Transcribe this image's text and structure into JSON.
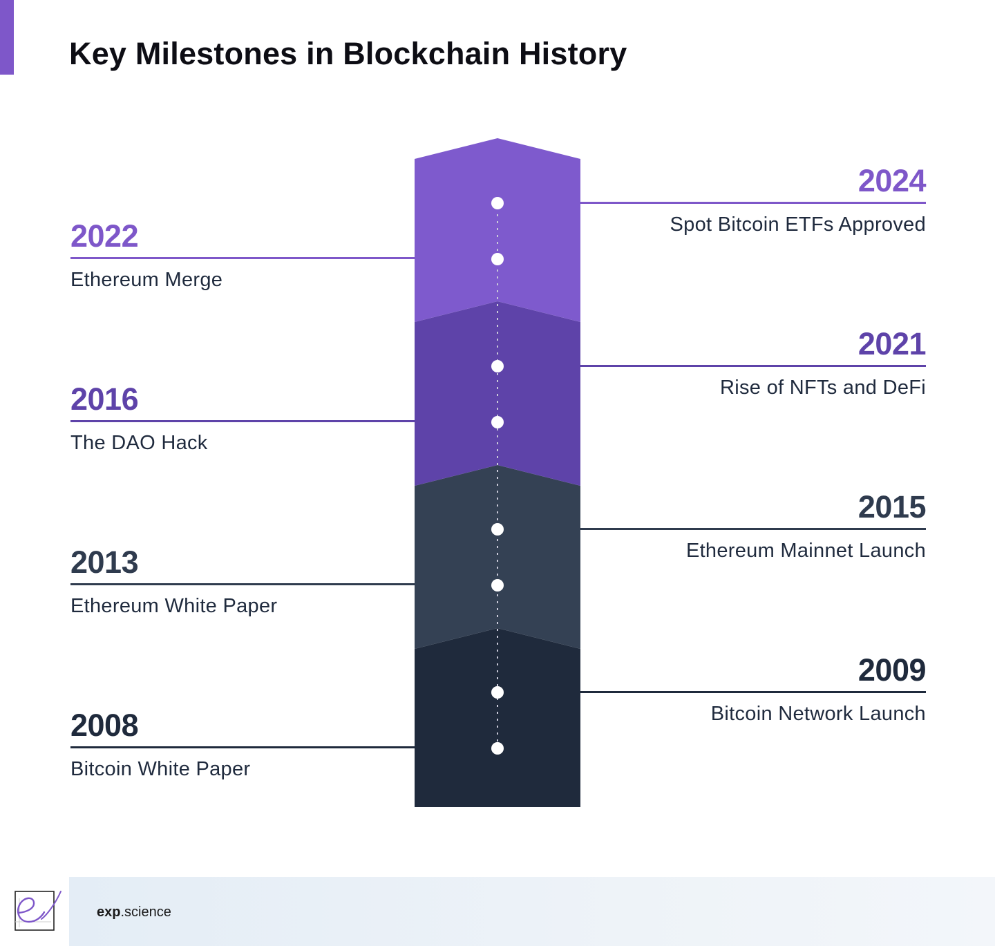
{
  "title": "Key Milestones in Blockchain History",
  "colors": {
    "accent": "#7e57c9",
    "purple_light": "#7e5acd",
    "purple_dark": "#5e43a9",
    "slate": "#344154",
    "navy": "#1f2a3c"
  },
  "milestones": [
    {
      "year": "2024",
      "event": "Spot Bitcoin ETFs Approved"
    },
    {
      "year": "2022",
      "event": "Ethereum Merge"
    },
    {
      "year": "2021",
      "event": "Rise of NFTs and DeFi"
    },
    {
      "year": "2016",
      "event": "The DAO Hack"
    },
    {
      "year": "2015",
      "event": "Ethereum Mainnet Launch"
    },
    {
      "year": "2013",
      "event": "Ethereum White Paper"
    },
    {
      "year": "2009",
      "event": "Bitcoin Network Launch"
    },
    {
      "year": "2008",
      "event": "Bitcoin White Paper"
    }
  ],
  "footer": {
    "brand_bold": "exp",
    "brand_rest": ".science",
    "logo_icon": "exp-science-logo-icon"
  }
}
